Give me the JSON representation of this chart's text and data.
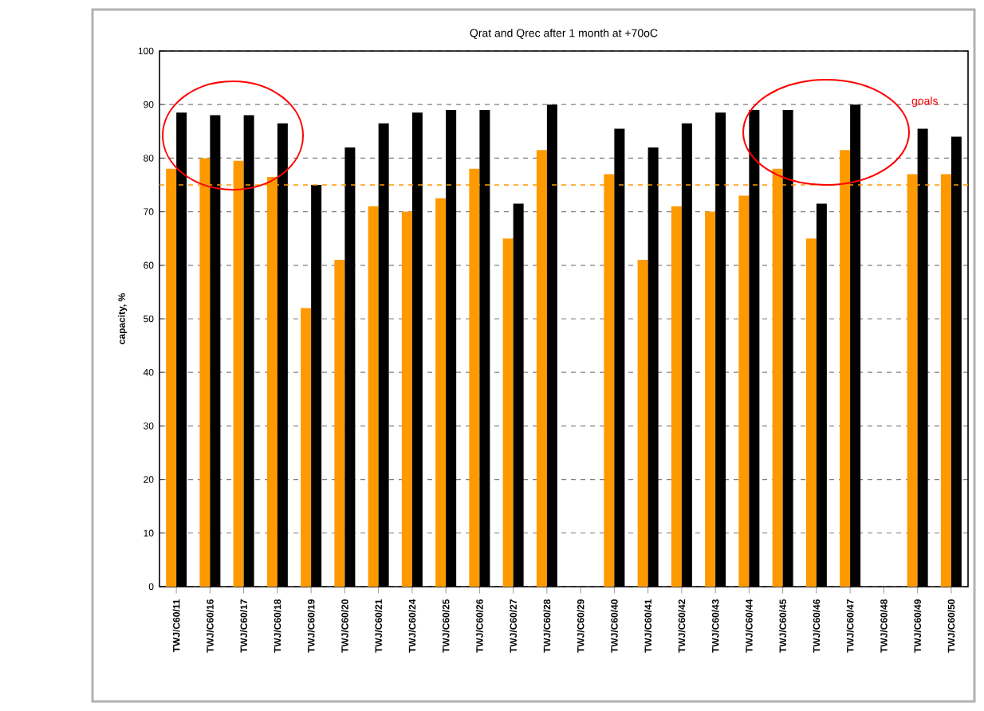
{
  "chart_data": {
    "type": "bar",
    "title": "Qrat and Qrec after 1 month at +70oC",
    "ylabel": "capacity, %",
    "categories": [
      "TWJ/C60/11",
      "TWJ/C60/16",
      "TWJ/C60/17",
      "TWJ/C60/18",
      "TWJ/C60/19",
      "TWJ/C60/20",
      "TWJ/C60/21",
      "TWJ/C60/24",
      "TWJ/C60/25",
      "TWJ/C60/26",
      "TWJ/C60/27",
      "TWJ/C60/28",
      "TWJ/C60/29",
      "TWJ/C60/40",
      "TWJ/C60/41",
      "TWJ/C60/42",
      "TWJ/C60/43",
      "TWJ/C60/44",
      "TWJ/C60/45",
      "TWJ/C60/46",
      "TWJ/C60/47",
      "TWJ/C60/48",
      "TWJ/C60/49",
      "TWJ/C60/50"
    ],
    "series": [
      {
        "color": "#ff9900",
        "values": [
          78,
          80,
          79.5,
          76.5,
          52,
          61,
          71,
          70,
          72.5,
          78,
          65,
          81.5,
          null,
          77,
          61,
          71,
          70,
          73,
          78,
          65,
          81.5,
          null,
          77,
          77
        ]
      },
      {
        "color": "#000000",
        "values": [
          88.5,
          88,
          88,
          86.5,
          75,
          82,
          86.5,
          88.5,
          89,
          89,
          71.5,
          90,
          null,
          85.5,
          82,
          86.5,
          88.5,
          89,
          89,
          71.5,
          90,
          null,
          85.5,
          84
        ]
      }
    ],
    "ylim": [
      0,
      100
    ],
    "yticks": [
      0,
      10,
      20,
      30,
      40,
      50,
      60,
      70,
      80,
      90,
      100
    ],
    "grid": "y",
    "ref_lines": [
      {
        "axis": "y",
        "value": 75,
        "color": "#ff9900",
        "line_style": "dashed"
      }
    ],
    "annotations": [
      "goals"
    ]
  }
}
